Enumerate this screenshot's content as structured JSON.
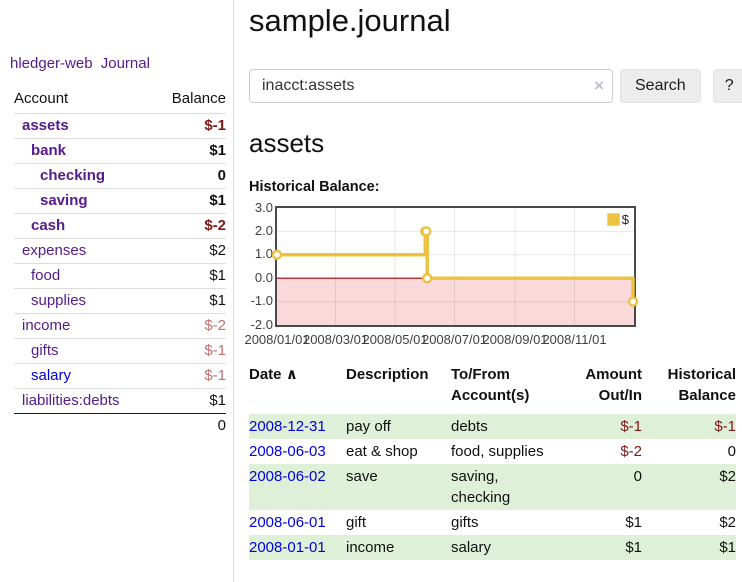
{
  "app": {
    "brand": "hledger-web",
    "nav_journal": "Journal"
  },
  "colors": {
    "link_purple": "#551a8b",
    "link_blue": "#0000dd",
    "negative_strong": "#7f1616",
    "negative_soft": "#c36f6f",
    "row_highlight_green": "#dff0d8",
    "series_gold": "#edc240",
    "negative_region_pink": "#f9d9d9",
    "zero_line_red": "#a40000"
  },
  "sidebar": {
    "accounts_header": {
      "account": "Account",
      "balance": "Balance"
    },
    "accounts": [
      {
        "label": "assets",
        "level": 1,
        "emphasized": true,
        "link_tone": "purple",
        "balance": "$-1",
        "balance_tone": "negative-strong"
      },
      {
        "label": "bank",
        "level": 2,
        "emphasized": true,
        "link_tone": "purple",
        "balance": "$1",
        "balance_tone": "normal"
      },
      {
        "label": "checking",
        "level": 3,
        "emphasized": true,
        "link_tone": "purple",
        "balance": "0",
        "balance_tone": "normal"
      },
      {
        "label": "saving",
        "level": 3,
        "emphasized": true,
        "link_tone": "purple",
        "balance": "$1",
        "balance_tone": "normal"
      },
      {
        "label": "cash",
        "level": 2,
        "emphasized": true,
        "link_tone": "purple",
        "balance": "$-2",
        "balance_tone": "negative-strong"
      },
      {
        "label": "expenses",
        "level": 1,
        "emphasized": false,
        "link_tone": "purple",
        "balance": "$2",
        "balance_tone": "normal"
      },
      {
        "label": "food",
        "level": 2,
        "emphasized": false,
        "link_tone": "purple",
        "balance": "$1",
        "balance_tone": "normal"
      },
      {
        "label": "supplies",
        "level": 2,
        "emphasized": false,
        "link_tone": "purple",
        "balance": "$1",
        "balance_tone": "normal"
      },
      {
        "label": "income",
        "level": 1,
        "emphasized": false,
        "link_tone": "purple",
        "balance": "$-2",
        "balance_tone": "negative-soft"
      },
      {
        "label": "gifts",
        "level": 2,
        "emphasized": false,
        "link_tone": "purple",
        "balance": "$-1",
        "balance_tone": "negative-soft"
      },
      {
        "label": "salary",
        "level": 2,
        "emphasized": false,
        "link_tone": "blue",
        "balance": "$-1",
        "balance_tone": "negative-soft"
      },
      {
        "label": "liabilities:debts",
        "level": 1,
        "emphasized": false,
        "link_tone": "purple",
        "balance": "$1",
        "balance_tone": "normal"
      }
    ],
    "total": "0"
  },
  "main": {
    "title": "sample.journal",
    "search": {
      "value": "inacct:assets",
      "clear": "×",
      "button": "Search",
      "help": "?"
    },
    "account_heading": "assets",
    "chart_heading": "Historical Balance:"
  },
  "chart_data": {
    "type": "line",
    "title": "Historical Balance",
    "step": true,
    "x_range": [
      "2008-01-01",
      "2009-01-01"
    ],
    "ylim": [
      -2,
      3
    ],
    "y_ticks": [
      3.0,
      2.0,
      1.0,
      0.0,
      -1.0,
      -2.0
    ],
    "x_ticks": [
      "2008/01/01",
      "2008/03/01",
      "2008/05/01",
      "2008/07/01",
      "2008/09/01",
      "2008/11/01"
    ],
    "grid": true,
    "legend": {
      "label": "$",
      "position": "top-right"
    },
    "series": [
      {
        "name": "$",
        "color": "#edc240",
        "points": [
          {
            "x": "2008-01-01",
            "y": 1
          },
          {
            "x": "2008-06-01",
            "y": 2
          },
          {
            "x": "2008-06-02",
            "y": 2
          },
          {
            "x": "2008-06-03",
            "y": 0
          },
          {
            "x": "2008-12-31",
            "y": -1
          }
        ]
      }
    ],
    "negative_region_shaded": true
  },
  "register": {
    "sort_indicator": "∧",
    "headers": [
      {
        "line1": "Date",
        "line2": ""
      },
      {
        "line1": "Description",
        "line2": ""
      },
      {
        "line1": "To/From",
        "line2": "Account(s)"
      },
      {
        "line1": "Amount",
        "line2": "Out/In"
      },
      {
        "line1": "Historical",
        "line2": "Balance"
      }
    ],
    "rows": [
      {
        "date": "2008-12-31",
        "description": "pay off",
        "accounts": "debts",
        "amount": "$-1",
        "amount_tone": "negative",
        "balance": "$-1",
        "balance_tone": "negative",
        "shaded": true
      },
      {
        "date": "2008-06-03",
        "description": "eat & shop",
        "accounts": "food, supplies",
        "amount": "$-2",
        "amount_tone": "negative",
        "balance": "0",
        "balance_tone": "normal",
        "shaded": false
      },
      {
        "date": "2008-06-02",
        "description": "save",
        "accounts": "saving, checking",
        "amount": "0",
        "amount_tone": "normal",
        "balance": "$2",
        "balance_tone": "normal",
        "shaded": true
      },
      {
        "date": "2008-06-01",
        "description": "gift",
        "accounts": "gifts",
        "amount": "$1",
        "amount_tone": "normal",
        "balance": "$2",
        "balance_tone": "normal",
        "shaded": false
      },
      {
        "date": "2008-01-01",
        "description": "income",
        "accounts": "salary",
        "amount": "$1",
        "amount_tone": "normal",
        "balance": "$1",
        "balance_tone": "normal",
        "shaded": true
      }
    ]
  }
}
